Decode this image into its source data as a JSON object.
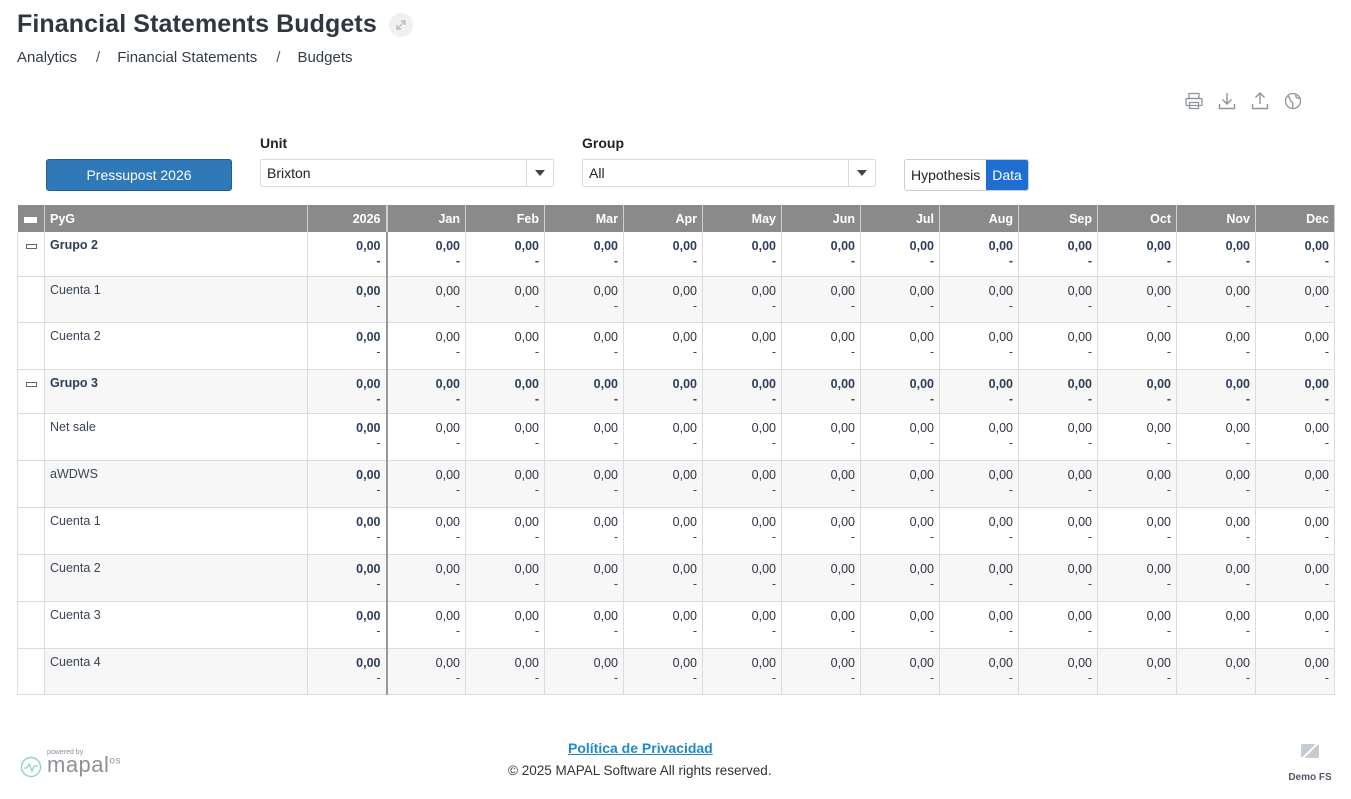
{
  "page": {
    "title": "Financial Statements Budgets"
  },
  "breadcrumb": [
    "Analytics",
    "Financial Statements",
    "Budgets"
  ],
  "toolbar": {
    "icons": [
      "print-icon",
      "download-icon",
      "upload-icon",
      "globe-icon"
    ]
  },
  "budget_button": {
    "label": "Pressupost 2026"
  },
  "unit": {
    "label": "Unit",
    "value": "Brixton"
  },
  "group": {
    "label": "Group",
    "value": "All"
  },
  "view_toggle": {
    "hypothesis": "Hypothesis",
    "data": "Data",
    "active": "Data"
  },
  "table": {
    "name_header": "PyG",
    "columns": [
      "2026",
      "Jan",
      "Feb",
      "Mar",
      "Apr",
      "May",
      "Jun",
      "Jul",
      "Aug",
      "Sep",
      "Oct",
      "Nov",
      "Dec"
    ],
    "rows": [
      {
        "name": "Grupo 2",
        "group": true,
        "values": [
          "0,00",
          "0,00",
          "0,00",
          "0,00",
          "0,00",
          "0,00",
          "0,00",
          "0,00",
          "0,00",
          "0,00",
          "0,00",
          "0,00",
          "0,00"
        ],
        "sub": [
          "-",
          "-",
          "-",
          "-",
          "-",
          "-",
          "-",
          "-",
          "-",
          "-",
          "-",
          "-",
          "-"
        ]
      },
      {
        "name": "Cuenta 1",
        "group": false,
        "values": [
          "0,00",
          "0,00",
          "0,00",
          "0,00",
          "0,00",
          "0,00",
          "0,00",
          "0,00",
          "0,00",
          "0,00",
          "0,00",
          "0,00",
          "0,00"
        ],
        "sub": [
          "-",
          "-",
          "-",
          "-",
          "-",
          "-",
          "-",
          "-",
          "-",
          "-",
          "-",
          "-",
          "-"
        ]
      },
      {
        "name": "Cuenta 2",
        "group": false,
        "values": [
          "0,00",
          "0,00",
          "0,00",
          "0,00",
          "0,00",
          "0,00",
          "0,00",
          "0,00",
          "0,00",
          "0,00",
          "0,00",
          "0,00",
          "0,00"
        ],
        "sub": [
          "-",
          "-",
          "-",
          "-",
          "-",
          "-",
          "-",
          "-",
          "-",
          "-",
          "-",
          "-",
          "-"
        ]
      },
      {
        "name": "Grupo 3",
        "group": true,
        "values": [
          "0,00",
          "0,00",
          "0,00",
          "0,00",
          "0,00",
          "0,00",
          "0,00",
          "0,00",
          "0,00",
          "0,00",
          "0,00",
          "0,00",
          "0,00"
        ],
        "sub": [
          "-",
          "-",
          "-",
          "-",
          "-",
          "-",
          "-",
          "-",
          "-",
          "-",
          "-",
          "-",
          "-"
        ]
      },
      {
        "name": "Net sale",
        "group": false,
        "values": [
          "0,00",
          "0,00",
          "0,00",
          "0,00",
          "0,00",
          "0,00",
          "0,00",
          "0,00",
          "0,00",
          "0,00",
          "0,00",
          "0,00",
          "0,00"
        ],
        "sub": [
          "-",
          "-",
          "-",
          "-",
          "-",
          "-",
          "-",
          "-",
          "-",
          "-",
          "-",
          "-",
          "-"
        ]
      },
      {
        "name": "aWDWS",
        "group": false,
        "values": [
          "0,00",
          "0,00",
          "0,00",
          "0,00",
          "0,00",
          "0,00",
          "0,00",
          "0,00",
          "0,00",
          "0,00",
          "0,00",
          "0,00",
          "0,00"
        ],
        "sub": [
          "-",
          "-",
          "-",
          "-",
          "-",
          "-",
          "-",
          "-",
          "-",
          "-",
          "-",
          "-",
          "-"
        ]
      },
      {
        "name": "Cuenta 1",
        "group": false,
        "values": [
          "0,00",
          "0,00",
          "0,00",
          "0,00",
          "0,00",
          "0,00",
          "0,00",
          "0,00",
          "0,00",
          "0,00",
          "0,00",
          "0,00",
          "0,00"
        ],
        "sub": [
          "-",
          "-",
          "-",
          "-",
          "-",
          "-",
          "-",
          "-",
          "-",
          "-",
          "-",
          "-",
          "-"
        ]
      },
      {
        "name": "Cuenta 2",
        "group": false,
        "values": [
          "0,00",
          "0,00",
          "0,00",
          "0,00",
          "0,00",
          "0,00",
          "0,00",
          "0,00",
          "0,00",
          "0,00",
          "0,00",
          "0,00",
          "0,00"
        ],
        "sub": [
          "-",
          "-",
          "-",
          "-",
          "-",
          "-",
          "-",
          "-",
          "-",
          "-",
          "-",
          "-",
          "-"
        ]
      },
      {
        "name": "Cuenta 3",
        "group": false,
        "values": [
          "0,00",
          "0,00",
          "0,00",
          "0,00",
          "0,00",
          "0,00",
          "0,00",
          "0,00",
          "0,00",
          "0,00",
          "0,00",
          "0,00",
          "0,00"
        ],
        "sub": [
          "-",
          "-",
          "-",
          "-",
          "-",
          "-",
          "-",
          "-",
          "-",
          "-",
          "-",
          "-",
          "-"
        ]
      },
      {
        "name": "Cuenta 4",
        "group": false,
        "values": [
          "0,00",
          "0,00",
          "0,00",
          "0,00",
          "0,00",
          "0,00",
          "0,00",
          "0,00",
          "0,00",
          "0,00",
          "0,00",
          "0,00",
          "0,00"
        ],
        "sub": [
          "-",
          "-",
          "-",
          "-",
          "-",
          "-",
          "-",
          "-",
          "-",
          "-",
          "-",
          "-",
          "-"
        ]
      }
    ]
  },
  "footer": {
    "privacy_link": "Política de Privacidad",
    "copyright": "© 2025 MAPAL Software All rights reserved.",
    "powered_by": "powered by",
    "logo_text": "mapal",
    "logo_suffix": "os",
    "demo_label": "Demo FS"
  }
}
